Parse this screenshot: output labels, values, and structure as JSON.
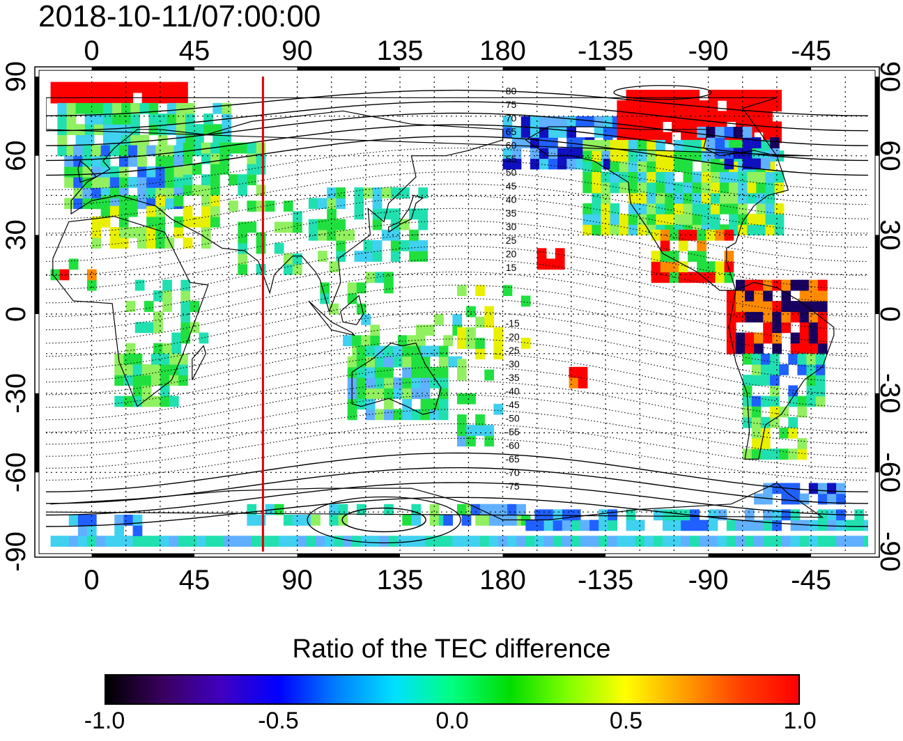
{
  "timestamp": "2018-10-11/07:00:00",
  "map": {
    "top_lon_labels": [
      "0",
      "45",
      "90",
      "135",
      "180",
      "-135",
      "-90",
      "-45"
    ],
    "bottom_lon_labels": [
      "0",
      "45",
      "90",
      "135",
      "180",
      "-135",
      "-90",
      "-45"
    ],
    "left_lat_labels": [
      "90",
      "60",
      "30",
      "0",
      "-30",
      "-60",
      "-90"
    ],
    "right_lat_labels": [
      "90",
      "60",
      "30",
      "0",
      "-30",
      "-60",
      "-90"
    ],
    "lon_ticks": [
      0,
      45,
      90,
      135,
      180,
      225,
      270,
      315
    ],
    "lat_ticks": [
      90,
      60,
      30,
      0,
      -30,
      -60,
      -90
    ],
    "lon_range": [
      -20,
      340
    ],
    "lat_range": [
      -90,
      90
    ],
    "marker_longitude": 75,
    "marker_color": "#dd0000",
    "magnetic_lat_labels_north": [
      "80",
      "75",
      "70",
      "65",
      "60",
      "55",
      "50",
      "45",
      "40",
      "35",
      "30",
      "25",
      "20",
      "15"
    ],
    "magnetic_lat_labels_south": [
      "-15",
      "-20",
      "-25",
      "-30",
      "-35",
      "-40",
      "-45",
      "-50",
      "-55",
      "-60",
      "-65",
      "-70",
      "-75"
    ]
  },
  "colorbar": {
    "title": "Ratio of the TEC difference",
    "ticks": [
      "-1.0",
      "-0.5",
      "0.0",
      "0.5",
      "1.0"
    ],
    "tick_values": [
      -1.0,
      -0.5,
      0.0,
      0.5,
      1.0
    ],
    "range": [
      -1.0,
      1.0
    ],
    "colors": [
      "#000000",
      "#3a0060",
      "#4000c0",
      "#0000ff",
      "#0080ff",
      "#00e0ff",
      "#00ff80",
      "#00dd00",
      "#80ff00",
      "#ffff00",
      "#ffa000",
      "#ff4000",
      "#ff0000"
    ]
  },
  "palette": {
    "red": "#ff0000",
    "orange": "#ff8a00",
    "yellow": "#e8f000",
    "lightgreen": "#90f060",
    "green": "#20e040",
    "teal": "#20e0b0",
    "cyan": "#40d0f0",
    "lightblue": "#60b0ff",
    "blue": "#2060ff",
    "darkblue": "#1010c0",
    "navy": "#180060"
  }
}
